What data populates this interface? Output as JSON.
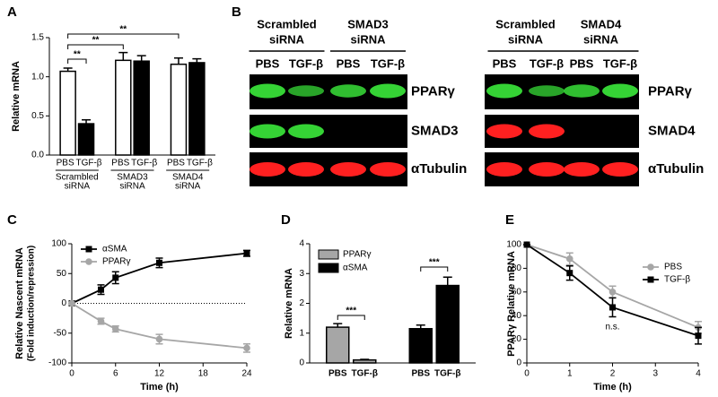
{
  "chart_data": [
    {
      "panel_label": "A",
      "type": "bar",
      "ylabel": "Relative mRNA",
      "categories": [
        "PBS",
        "TGF-β",
        "PBS",
        "TGF-β",
        "PBS",
        "TGF-β"
      ],
      "groups": [
        [
          "Scrambled",
          "siRNA"
        ],
        [
          "SMAD3",
          "siRNA"
        ],
        [
          "SMAD4",
          "siRNA"
        ]
      ],
      "values": [
        1.07,
        0.4,
        1.21,
        1.2,
        1.16,
        1.18
      ],
      "errors": [
        0.04,
        0.05,
        0.1,
        0.07,
        0.08,
        0.05
      ],
      "colors": [
        "#ffffff",
        "#000000",
        "#ffffff",
        "#000000",
        "#ffffff",
        "#000000"
      ],
      "ylim": [
        0,
        1.5
      ],
      "yticks": [
        {
          "value": 0,
          "label": "0.0"
        },
        0.5,
        {
          "value": 1,
          "label": "1.0"
        },
        1.5
      ],
      "annotations": [
        "**",
        "**",
        "**"
      ]
    },
    {
      "panel_label": "C",
      "type": "line",
      "ylabel": "Relative Nascent mRNA",
      "ylabel_note": "(Fold induction/repression)",
      "xlabel": "Time (h)",
      "x": [
        0,
        4,
        6,
        12,
        24
      ],
      "xlim": [
        0,
        24
      ],
      "xticks": [
        0,
        6,
        12,
        18,
        24
      ],
      "ylim": [
        -100,
        100
      ],
      "yticks": [
        -100,
        -50,
        0,
        50,
        100
      ],
      "legend": "upper left",
      "series": [
        {
          "name": "αSMA",
          "color": "#000000",
          "marker": "square",
          "values": [
            0,
            23,
            43,
            68,
            84
          ],
          "errors": [
            0,
            8,
            10,
            8,
            5
          ]
        },
        {
          "name": "PPARγ",
          "color": "#a6a6a6",
          "marker": "circle",
          "values": [
            0,
            -30,
            -43,
            -60,
            -75
          ],
          "errors": [
            0,
            5,
            5,
            8,
            7
          ]
        }
      ]
    },
    {
      "panel_label": "D",
      "type": "bar",
      "ylabel": "Relative mRNA",
      "categories": [
        "PBS",
        "TGF-β",
        "PBS",
        "TGF-β"
      ],
      "ylim": [
        0,
        4
      ],
      "yticks": [
        0,
        1,
        2,
        3,
        4
      ],
      "legend": "upper left",
      "series": [
        {
          "name": "PPARγ",
          "color": "#a6a6a6",
          "values": [
            1.2,
            0.1,
            null,
            null
          ],
          "errors": [
            0.12,
            0.02,
            null,
            null
          ]
        },
        {
          "name": "αSMA",
          "color": "#000000",
          "values": [
            null,
            null,
            1.15,
            2.6
          ],
          "errors": [
            null,
            null,
            0.12,
            0.28
          ]
        }
      ],
      "annotations": [
        "***",
        "***"
      ]
    },
    {
      "panel_label": "E",
      "type": "line",
      "ylabel": "PPARγ Relative mRNA",
      "xlabel": "Time (h)",
      "x": [
        0,
        1,
        2,
        4
      ],
      "xlim": [
        0,
        4
      ],
      "xticks": [
        0,
        1,
        2,
        3,
        4
      ],
      "ylim": [
        0,
        100
      ],
      "yticks": [
        0,
        20,
        40,
        60,
        80,
        100
      ],
      "legend": "upper right",
      "series": [
        {
          "name": "PBS",
          "color": "#a6a6a6",
          "marker": "circle",
          "values": [
            100,
            88,
            60,
            30
          ],
          "errors": [
            0,
            5,
            5,
            5
          ]
        },
        {
          "name": "TGF-β",
          "color": "#000000",
          "marker": "square",
          "values": [
            100,
            76,
            47,
            23
          ],
          "errors": [
            0,
            6,
            8,
            7
          ]
        }
      ],
      "annotations": [
        "n.s."
      ]
    }
  ],
  "blot": {
    "panel_label": "B",
    "panels": [
      {
        "groups": [
          [
            "Scrambled",
            "siRNA"
          ],
          [
            "SMAD3",
            "siRNA"
          ]
        ],
        "lanes": [
          "PBS",
          "TGF-β",
          "PBS",
          "TGF-β"
        ],
        "rows": [
          "PPARγ",
          "SMAD3",
          "αTubulin"
        ]
      },
      {
        "groups": [
          [
            "Scrambled",
            "siRNA"
          ],
          [
            "SMAD4",
            "siRNA"
          ]
        ],
        "lanes": [
          "PBS",
          "TGF-β",
          "PBS",
          "TGF-β"
        ],
        "rows": [
          "PPARγ",
          "SMAD4",
          "αTubulin"
        ]
      }
    ]
  }
}
